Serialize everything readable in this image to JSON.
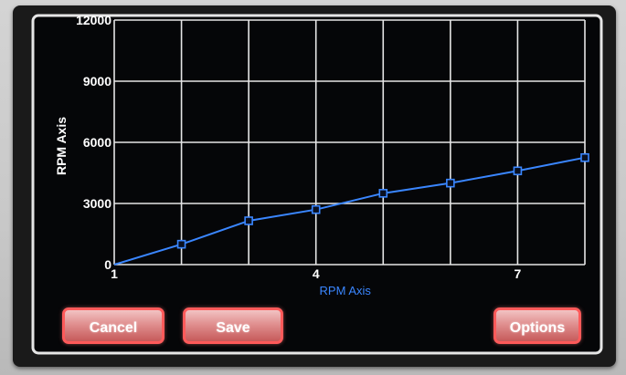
{
  "screen": {
    "buttons": {
      "cancel_label": "Cancel",
      "save_label": "Save",
      "options_label": "Options"
    }
  },
  "chart_data": {
    "type": "line",
    "title": "",
    "xlabel": "RPM Axis",
    "ylabel": "RPM Axis",
    "xlim": [
      1,
      8
    ],
    "ylim": [
      0,
      12000
    ],
    "x_ticks": [
      1,
      4,
      7
    ],
    "x_tick_labels": [
      "1",
      "4",
      "7"
    ],
    "y_ticks": [
      0,
      3000,
      6000,
      9000,
      12000
    ],
    "y_tick_labels": [
      "0",
      "3000",
      "6000",
      "9000",
      "12000"
    ],
    "grid": true,
    "series": [
      {
        "x": [
          1,
          2,
          3,
          4,
          5,
          6,
          7,
          8
        ],
        "y": [
          0,
          1000,
          2150,
          2700,
          3500,
          4000,
          4600,
          5250
        ],
        "color": "#3a86ff",
        "marker": "square"
      }
    ]
  },
  "colors": {
    "grid": "#e6e6e6",
    "line": "#3a86ff",
    "button_border": "#ff5a5a",
    "tick_text": "#ffffff",
    "xlabel_text": "#3a86ff"
  }
}
